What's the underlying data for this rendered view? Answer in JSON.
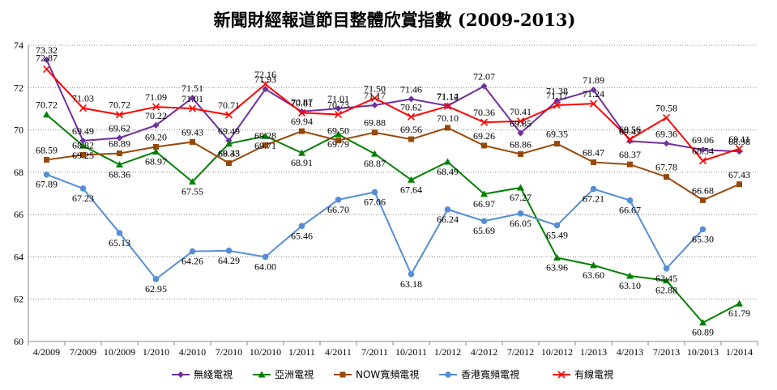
{
  "chart_data": {
    "type": "line",
    "title": "新聞財經報道節目整體欣賞指數 (2009-2013)",
    "xlabel": "",
    "ylabel": "",
    "ylim": [
      60,
      74
    ],
    "yticks": [
      "60",
      "62",
      "64",
      "66",
      "68",
      "70",
      "72",
      "74"
    ],
    "grid": "horizontal dotted",
    "legend": "bottom",
    "categories": [
      "4/2009",
      "7/2009",
      "10/2009",
      "1/2010",
      "4/2010",
      "7/2010",
      "10/2010",
      "1/2011",
      "4/2011",
      "7/2011",
      "10/2011",
      "1/2012",
      "4/2012",
      "7/2012",
      "10/2012",
      "1/2013",
      "4/2013",
      "7/2013",
      "10/2013",
      "1/2014"
    ],
    "series": [
      {
        "name": "無綫電視",
        "color": "#7030A0",
        "marker": "diamond",
        "values": [
          73.32,
          69.49,
          69.62,
          70.22,
          71.51,
          69.49,
          71.93,
          70.87,
          71.01,
          71.17,
          71.46,
          71.14,
          72.07,
          69.85,
          71.38,
          71.89,
          69.47,
          69.36,
          69.06,
          68.98
        ],
        "labels": [
          "73.32",
          "69.49",
          "69.62",
          "70.22",
          "71.51",
          "69.49",
          "71.93",
          "70.87",
          "71.01",
          "71.17",
          "71.46",
          "71.14",
          "72.07",
          "69.85",
          "71.38",
          "71.89",
          "69.47",
          "69.36",
          "69.06",
          "68.98"
        ]
      },
      {
        "name": "亞洲電視",
        "color": "#008000",
        "marker": "triangle",
        "values": [
          70.72,
          69.25,
          68.36,
          68.97,
          67.55,
          69.35,
          69.71,
          68.91,
          69.79,
          68.87,
          67.64,
          68.49,
          66.97,
          67.27,
          63.96,
          63.6,
          63.1,
          62.88,
          60.89,
          61.79
        ],
        "labels": [
          "70.72",
          "69.25",
          "68.36",
          "68.97",
          "67.55",
          "69.35",
          "69.71",
          "68.91",
          "69.79",
          "68.87",
          "67.64",
          "68.49",
          "66.97",
          "67.27",
          "63.96",
          "63.60",
          "63.10",
          "62.88",
          "60.89",
          "61.79"
        ]
      },
      {
        "name": "NOW寬頻電視",
        "color": "#984807",
        "marker": "square",
        "values": [
          68.59,
          68.82,
          68.89,
          69.2,
          69.43,
          68.43,
          69.28,
          69.94,
          69.5,
          69.88,
          69.56,
          70.1,
          69.26,
          68.86,
          69.35,
          68.47,
          68.37,
          67.78,
          66.68,
          67.43
        ],
        "labels": [
          "68.59",
          "68.82",
          "68.89",
          "69.20",
          "69.43",
          "68.43",
          "69.28",
          "69.94",
          "69.50",
          "69.88",
          "69.56",
          "70.10",
          "69.26",
          "68.86",
          "69.35",
          "68.47",
          "68.37",
          "67.78",
          "66.68",
          "67.43"
        ]
      },
      {
        "name": "香港寬頻電視",
        "color": "#558ED5",
        "marker": "circle",
        "values": [
          67.89,
          67.23,
          65.13,
          62.95,
          64.26,
          64.29,
          64.0,
          65.46,
          66.7,
          67.06,
          63.18,
          66.24,
          65.69,
          66.05,
          65.49,
          67.21,
          66.67,
          63.45,
          65.3,
          null
        ],
        "labels": [
          "67.89",
          "67.23",
          "65.13",
          "62.95",
          "64.26",
          "64.29",
          "64.00",
          "65.46",
          "66.70",
          "67.06",
          "63.18",
          "66.24",
          "65.69",
          "66.05",
          "65.49",
          "67.21",
          "66.67",
          "63.45",
          "65.30",
          null
        ]
      },
      {
        "name": "有線電視",
        "color": "#FF0000",
        "marker": "cross",
        "values": [
          72.87,
          71.03,
          70.72,
          71.09,
          71.01,
          70.71,
          72.16,
          70.81,
          70.73,
          71.5,
          70.62,
          71.12,
          70.36,
          70.41,
          71.17,
          71.24,
          69.56,
          70.58,
          68.54,
          69.11
        ],
        "labels": [
          "72.87",
          "71.03",
          "70.72",
          "71.09",
          "71.01",
          "70.71",
          "72.16",
          "70.81",
          "70.73",
          "71.50",
          "70.62",
          "71.12",
          "70.36",
          "70.41",
          "71.17",
          "71.24",
          "69.56",
          "70.58",
          "68.54",
          "69.11"
        ]
      }
    ]
  }
}
